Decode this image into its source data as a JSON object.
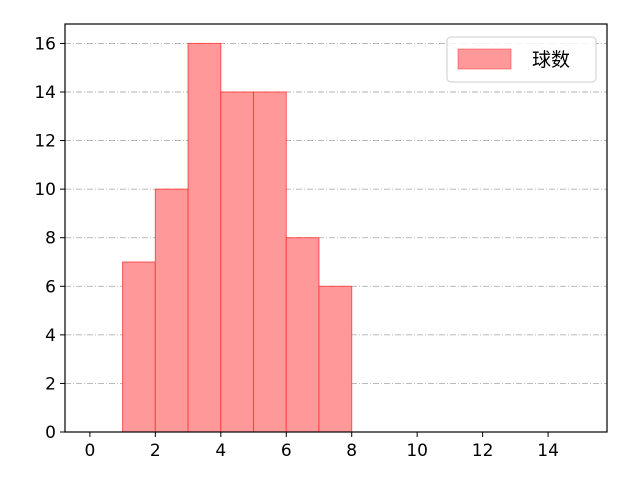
{
  "chart_data": {
    "type": "bar",
    "histogram": true,
    "bins": [
      [
        1,
        2
      ],
      [
        2,
        3
      ],
      [
        3,
        4
      ],
      [
        4,
        5
      ],
      [
        5,
        6
      ],
      [
        6,
        7
      ],
      [
        7,
        8
      ]
    ],
    "values": [
      7,
      10,
      16,
      14,
      14,
      8,
      6
    ],
    "series": [
      {
        "name": "球数",
        "values": [
          7,
          10,
          16,
          14,
          14,
          8,
          6
        ]
      }
    ],
    "title": "",
    "xlabel": "",
    "ylabel": "",
    "xlim": [
      -0.76,
      15.8
    ],
    "ylim": [
      0,
      16.8
    ],
    "xticks": [
      0,
      2,
      4,
      6,
      8,
      10,
      12,
      14
    ],
    "yticks": [
      0,
      2,
      4,
      6,
      8,
      10,
      12,
      14,
      16
    ],
    "grid": "horizontal dash-dot",
    "legend_position": "top-right",
    "colors": {
      "bar_fill": "#ff9999",
      "bar_edge": "#ff3333",
      "grid": "#b0b0b0"
    }
  }
}
